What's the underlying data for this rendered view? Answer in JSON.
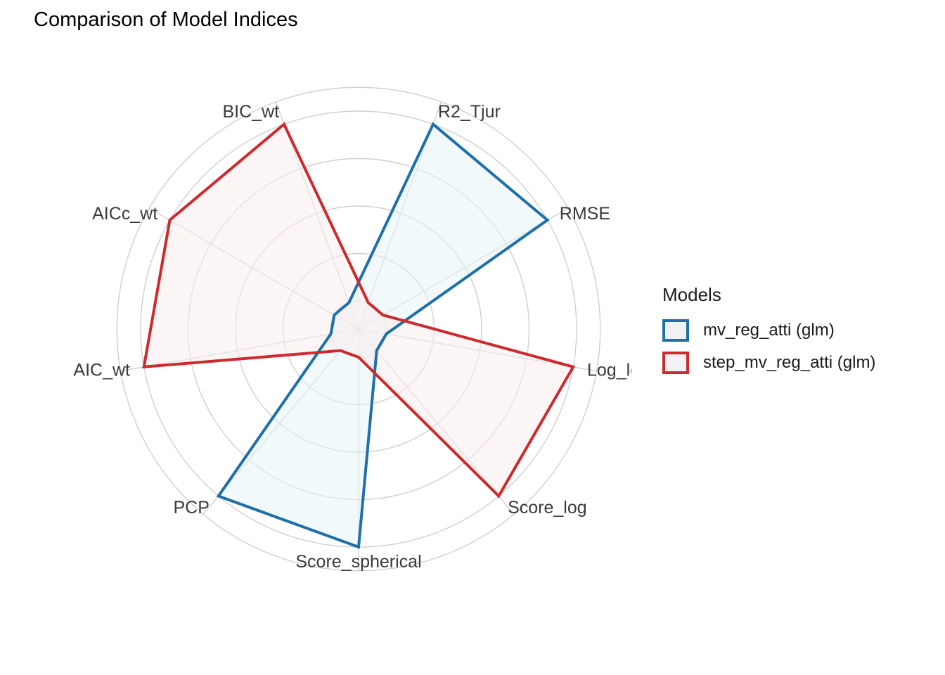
{
  "chart_data": {
    "type": "radar",
    "title": "Comparison of Model Indices",
    "axes": [
      "R2_Tjur",
      "RMSE",
      "Log_loss",
      "Score_log",
      "Score_spherical",
      "PCP",
      "AIC_wt",
      "AICc_wt",
      "BIC_wt"
    ],
    "axis_label_display": [
      "R2_Tjur",
      "RMSE",
      "Log_loss",
      "Score_log",
      "Score_spherical",
      "PCP",
      "AIC_wt",
      "AICc_wt",
      "BIC_wt"
    ],
    "rlim": [
      0,
      1
    ],
    "grid": true,
    "legend_position": "right",
    "legend_title": "Models",
    "series": [
      {
        "name": "mv_reg_atti (glm)",
        "color": "#1f6fa8",
        "fill": "#e6f4f8",
        "values": [
          1.0,
          1.0,
          0.0,
          0.0,
          1.0,
          1.0,
          0.0,
          0.0,
          0.0
        ]
      },
      {
        "name": "step_mv_reg_atti (glm)",
        "color": "#cc2a2e",
        "fill": "#faecec",
        "values": [
          0.0,
          0.0,
          1.0,
          1.0,
          0.0,
          0.0,
          1.0,
          1.0,
          1.0
        ]
      }
    ]
  }
}
